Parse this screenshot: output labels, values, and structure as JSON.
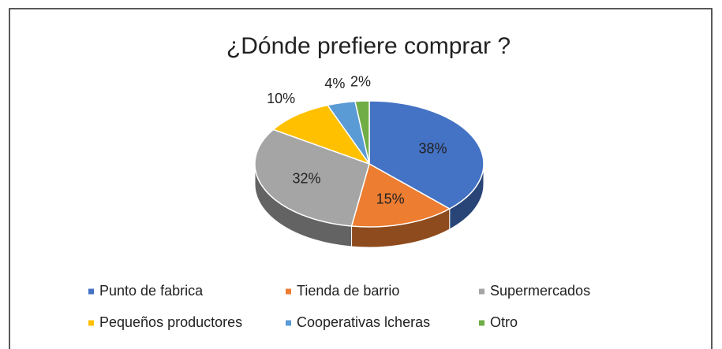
{
  "chart_data": {
    "type": "pie",
    "title": "¿Dónde prefiere comprar ?",
    "categories": [
      "Punto de fabrica",
      "Tienda de barrio",
      "Supermercados",
      "Pequeños productores",
      "Cooperativas lcheras",
      "Otro"
    ],
    "values": [
      38,
      15,
      32,
      10,
      4,
      2
    ],
    "value_labels": [
      "38%",
      "15%",
      "32%",
      "10%",
      "4%",
      "2%"
    ],
    "colors": [
      "#4472c4",
      "#ed7d31",
      "#a5a5a5",
      "#ffc000",
      "#5b9bd5",
      "#70ad47"
    ],
    "legend": "bottom"
  }
}
